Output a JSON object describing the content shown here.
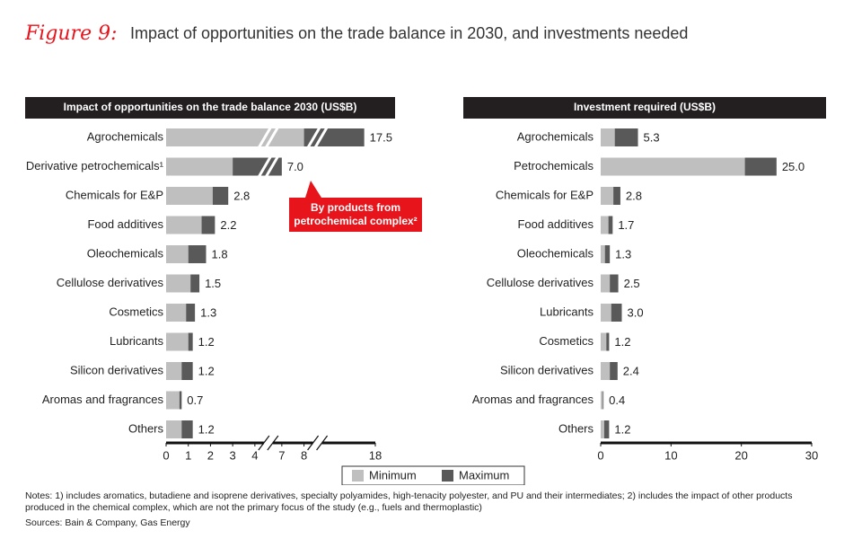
{
  "figure_label": "Figure 9:",
  "title": "Impact of opportunities on the trade balance in 2030, and investments needed",
  "notes": "Notes: 1) includes aromatics, butadiene and isoprene derivatives, specialty polyamides, high-tenacity polyester, and PU and their intermediates; 2) includes the impact of other products produced in the chemical complex, which are not the primary focus of the study (e.g., fuels and thermoplastic)",
  "sources": "Sources: Bain & Company, Gas Energy",
  "chart_data": [
    {
      "type": "range_bar",
      "title": "Impact of opportunities on the trade balance 2030 (US$B)",
      "categories": [
        "Agrochemicals",
        "Derivative petrochemicals¹",
        "Chemicals for E&P",
        "Food additives",
        "Oleochemicals",
        "Cellulose derivatives",
        "Cosmetics",
        "Lubricants",
        "Silicon derivatives",
        "Aromas and fragrances",
        "Others"
      ],
      "series": [
        {
          "name": "Minimum",
          "color": "#bfbfbf",
          "values": [
            8,
            3,
            2.1,
            1.6,
            1.0,
            1.1,
            0.9,
            1.0,
            0.7,
            0.6,
            0.7
          ]
        },
        {
          "name": "Maximum",
          "color": "#595959",
          "values": [
            17.5,
            7,
            2.8,
            2.2,
            1.8,
            1.5,
            1.3,
            1.2,
            1.2,
            0.7,
            1.2
          ],
          "value_labels": [
            "17.5",
            "7.0",
            "2.8",
            "2.2",
            "1.8",
            "1.5",
            "1.3",
            "1.2",
            "1.2",
            "0.7",
            "1.2"
          ]
        }
      ],
      "xlim": [
        0,
        18
      ],
      "xticks": [
        0,
        1,
        2,
        3,
        4,
        7,
        8,
        18
      ],
      "xbreaks": [
        [
          4,
          7
        ],
        [
          8,
          16
        ]
      ],
      "annotation": [
        "By products from",
        "petrochemical complex²"
      ],
      "annotation_color": "#e8141c"
    },
    {
      "type": "range_bar",
      "title": "Investment required (US$B)",
      "categories": [
        "Agrochemicals",
        "Petrochemicals",
        "Chemicals for E&P",
        "Food additives",
        "Oleochemicals",
        "Cellulose derivatives",
        "Lubricants",
        "Cosmetics",
        "Silicon derivatives",
        "Aromas and fragrances",
        "Others"
      ],
      "series": [
        {
          "color": "#bfbfbf",
          "values": [
            2,
            20.5,
            1.8,
            1.1,
            0.6,
            1.3,
            1.5,
            0.8,
            1.3,
            0.3,
            0.5
          ]
        },
        {
          "color": "#595959",
          "values": [
            5.3,
            25,
            2.8,
            1.7,
            1.3,
            2.5,
            3,
            1.2,
            2.4,
            0.4,
            1.2
          ],
          "value_labels": [
            "5.3",
            "25.0",
            "2.8",
            "1.7",
            "1.3",
            "2.5",
            "3.0",
            "1.2",
            "2.4",
            "0.4",
            "1.2"
          ]
        }
      ],
      "xlim": [
        0,
        30
      ],
      "xticks": [
        0,
        10,
        20,
        30
      ]
    }
  ]
}
